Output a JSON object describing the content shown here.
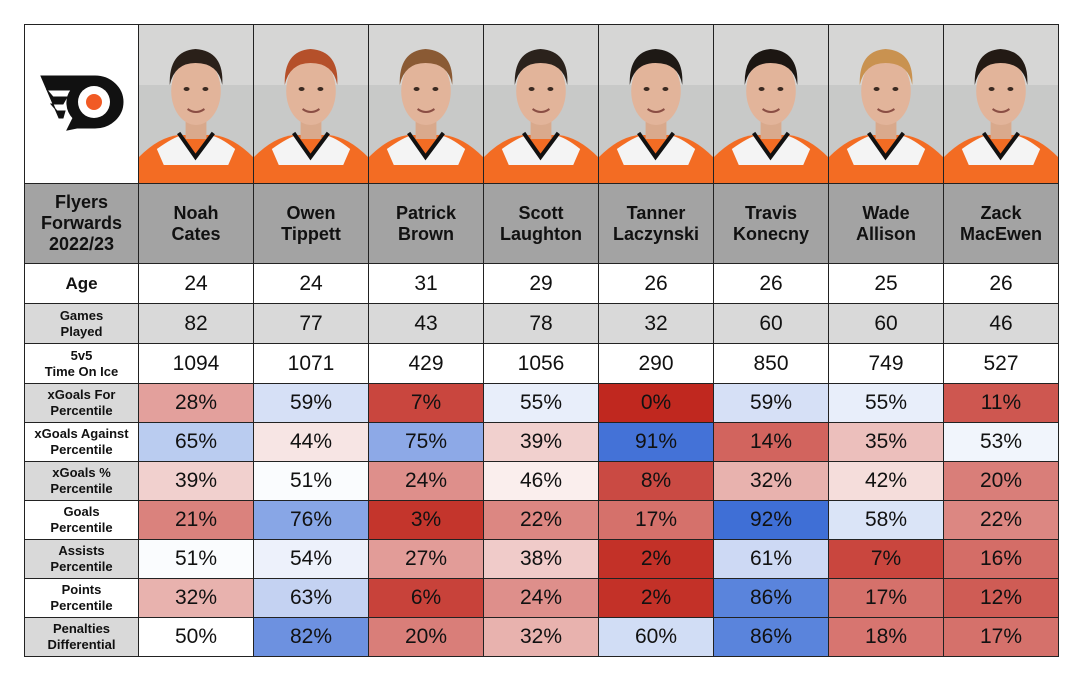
{
  "title": "Flyers Forwards 2022/23",
  "title_lines": [
    "Flyers",
    "Forwards",
    "2022/23"
  ],
  "logo": "philadelphia-flyers-logo",
  "colors": {
    "low": "#c0281f",
    "mid": "#ffffff",
    "high": "#3f6fd6",
    "header": "#a3a3a3",
    "row_gray": "#d9d9d9",
    "flyers_orange": "#f15a24"
  },
  "chart_data": {
    "type": "table",
    "players": [
      {
        "first": "Noah",
        "last": "Cates",
        "hair": "#2a2019"
      },
      {
        "first": "Owen",
        "last": "Tippett",
        "hair": "#b5502a"
      },
      {
        "first": "Patrick",
        "last": "Brown",
        "hair": "#8a5a34"
      },
      {
        "first": "Scott",
        "last": "Laughton",
        "hair": "#2b221c"
      },
      {
        "first": "Tanner",
        "last": "Laczynski",
        "hair": "#1e1915"
      },
      {
        "first": "Travis",
        "last": "Konecny",
        "hair": "#1c1612"
      },
      {
        "first": "Wade",
        "last": "Allison",
        "hair": "#c99250"
      },
      {
        "first": "Zack",
        "last": "MacEwen",
        "hair": "#231a14"
      }
    ],
    "plain_rows": [
      {
        "label": [
          "Age"
        ],
        "values": [
          "24",
          "24",
          "31",
          "29",
          "26",
          "26",
          "25",
          "26"
        ]
      },
      {
        "label": [
          "Games",
          "Played"
        ],
        "values": [
          "82",
          "77",
          "43",
          "78",
          "32",
          "60",
          "60",
          "46"
        ]
      },
      {
        "label": [
          "5v5",
          "Time On Ice"
        ],
        "values": [
          "1094",
          "1071",
          "429",
          "1056",
          "290",
          "850",
          "749",
          "527"
        ]
      }
    ],
    "percentile_rows": [
      {
        "label": [
          "xGoals For",
          "Percentile"
        ],
        "values": [
          28,
          59,
          7,
          55,
          0,
          59,
          55,
          11
        ]
      },
      {
        "label": [
          "xGoals Against",
          "Percentile"
        ],
        "values": [
          65,
          44,
          75,
          39,
          91,
          14,
          35,
          53
        ]
      },
      {
        "label": [
          "xGoals %",
          "Percentile"
        ],
        "values": [
          39,
          51,
          24,
          46,
          8,
          32,
          42,
          20
        ]
      },
      {
        "label": [
          "Goals",
          "Percentile"
        ],
        "values": [
          21,
          76,
          3,
          22,
          17,
          92,
          58,
          22
        ]
      },
      {
        "label": [
          "Assists",
          "Percentile"
        ],
        "values": [
          51,
          54,
          27,
          38,
          2,
          61,
          7,
          16
        ]
      },
      {
        "label": [
          "Points",
          "Percentile"
        ],
        "values": [
          32,
          63,
          6,
          24,
          2,
          86,
          17,
          12
        ]
      },
      {
        "label": [
          "Penalties",
          "Differential"
        ],
        "values": [
          50,
          82,
          20,
          32,
          60,
          86,
          18,
          17
        ]
      }
    ],
    "unit": "%"
  }
}
